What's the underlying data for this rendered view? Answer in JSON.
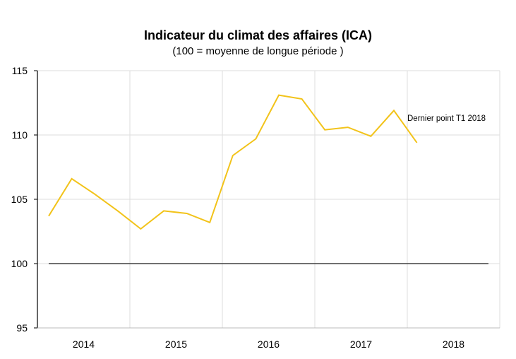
{
  "chart_data": {
    "type": "line",
    "title": "Indicateur du climat des affaires (ICA)",
    "subtitle": "(100 = moyenne de longue période )",
    "xlabel": "",
    "ylabel": "",
    "ylim": [
      95,
      115
    ],
    "yticks": [
      "95",
      "100",
      "105",
      "110",
      "115"
    ],
    "year_labels": [
      "2014",
      "2015",
      "2016",
      "2017",
      "2018"
    ],
    "grid": true,
    "series": [
      {
        "color": "#f2c31a",
        "x": [
          "2014 T1",
          "2014 T2",
          "2014 T3",
          "2014 T4",
          "2015 T1",
          "2015 T2",
          "2015 T3",
          "2015 T4",
          "2016 T1",
          "2016 T2",
          "2016 T3",
          "2016 T4",
          "2017 T1",
          "2017 T2",
          "2017 T3",
          "2017 T4",
          "2018 T1"
        ],
        "values": [
          103.7,
          106.6,
          105.4,
          104.1,
          102.7,
          104.1,
          103.9,
          103.2,
          108.4,
          109.7,
          113.1,
          112.8,
          110.4,
          110.6,
          109.9,
          111.9,
          109.4
        ]
      }
    ],
    "reference_line": {
      "value": 100,
      "color": "#404040"
    },
    "annotation": "Dernier point T1 2018"
  }
}
